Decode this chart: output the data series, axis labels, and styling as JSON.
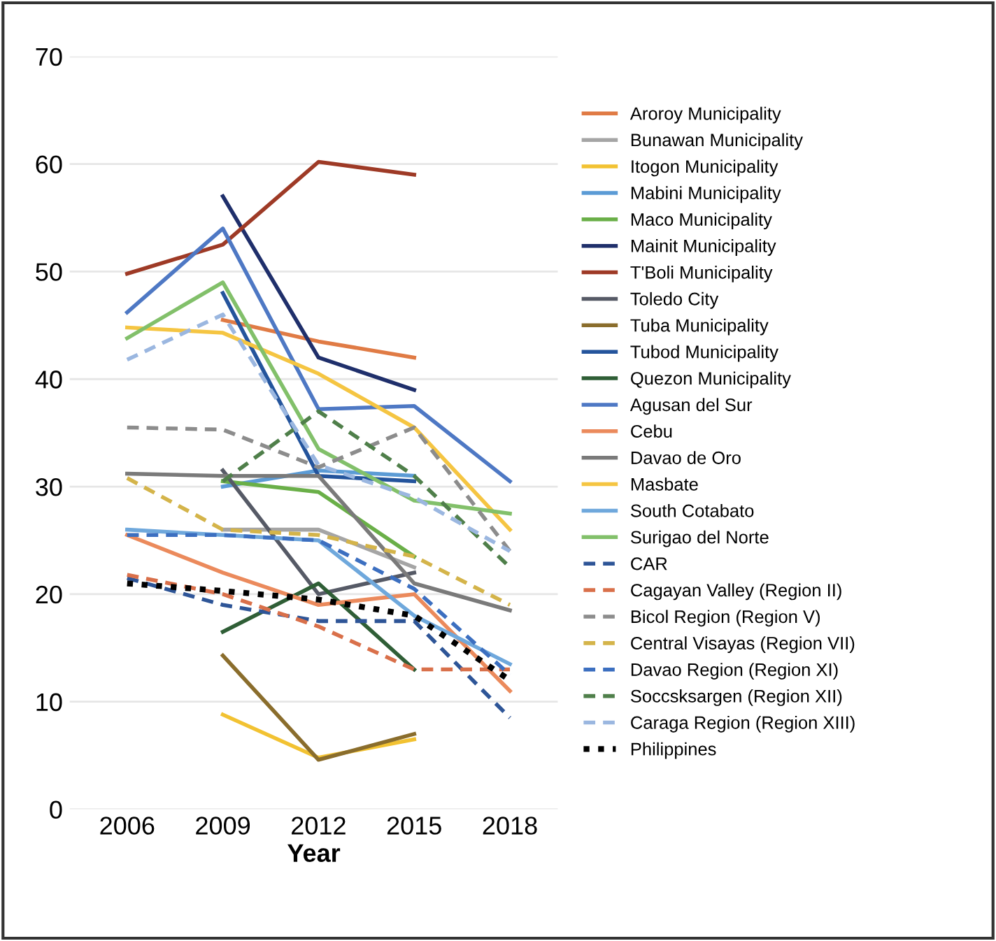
{
  "chart_data": {
    "type": "line",
    "xlabel": "Year",
    "categories": [
      "2006",
      "2009",
      "2012",
      "2015",
      "2018"
    ],
    "ylim": [
      0,
      70
    ],
    "yticks": [
      0,
      10,
      20,
      30,
      40,
      50,
      60,
      70
    ],
    "grid": "y",
    "legend": "right",
    "line_style": "solid",
    "series": [
      {
        "name": "Aroroy Municipality",
        "color": "#e07b45",
        "values": [
          null,
          45.5,
          43.5,
          42,
          null
        ]
      },
      {
        "name": "Bunawan Municipality",
        "color": "#a5a5a5",
        "values": [
          null,
          26,
          26,
          22.5,
          null
        ]
      },
      {
        "name": "Itogon Municipality",
        "color": "#f2c232",
        "values": [
          null,
          8.8,
          4.8,
          6.5,
          null
        ]
      },
      {
        "name": "Mabini Municipality",
        "color": "#5b9bd5",
        "values": [
          null,
          30,
          31.5,
          31,
          null
        ]
      },
      {
        "name": "Maco Municipality",
        "color": "#6aaf48",
        "values": [
          null,
          30.5,
          29.5,
          23.5,
          null
        ]
      },
      {
        "name": "Mainit Municipality",
        "color": "#1f2f6b",
        "values": [
          null,
          57,
          42,
          39,
          null
        ]
      },
      {
        "name": "T'Boli Municipality",
        "color": "#9e3a26",
        "values": [
          49.8,
          52.5,
          60.2,
          59,
          null
        ]
      },
      {
        "name": "Toledo City",
        "color": "#565a66",
        "values": [
          null,
          31.5,
          20,
          22,
          null
        ]
      },
      {
        "name": "Tuba Municipality",
        "color": "#8a6d2c",
        "values": [
          null,
          14.3,
          4.6,
          7,
          null
        ]
      },
      {
        "name": "Tubod Municipality",
        "color": "#24549c",
        "values": [
          null,
          48,
          31,
          30.5,
          null
        ]
      },
      {
        "name": "Quezon Municipality",
        "color": "#2f5e36",
        "values": [
          null,
          16.5,
          21,
          13,
          null
        ]
      },
      {
        "name": "Agusan del Sur",
        "color": "#4e78c4",
        "values": [
          46.2,
          54,
          37.2,
          37.5,
          30.5
        ]
      },
      {
        "name": "Cebu",
        "color": "#eb8a5c",
        "values": [
          25.5,
          22,
          19,
          20,
          11
        ]
      },
      {
        "name": "Davao de Oro",
        "color": "#7a7a7a",
        "values": [
          31.2,
          31,
          31,
          21,
          18.5
        ]
      },
      {
        "name": "Masbate",
        "color": "#f5c542",
        "values": [
          44.8,
          44.3,
          40.5,
          35.5,
          26
        ]
      },
      {
        "name": "South Cotabato",
        "color": "#6fa8dc",
        "values": [
          26,
          25.5,
          25,
          18,
          13.5
        ]
      },
      {
        "name": "Surigao del Norte",
        "color": "#82c06a",
        "values": [
          43.8,
          49,
          33.5,
          28.7,
          27.5
        ]
      },
      {
        "name": "CAR",
        "color": "#2e5597",
        "line_style": "dashed",
        "values": [
          21.5,
          19,
          17.5,
          17.5,
          8.5
        ]
      },
      {
        "name": "Cagayan Valley (Region II)",
        "color": "#d9704a",
        "line_style": "dashed",
        "values": [
          21.8,
          20,
          17,
          13,
          13
        ]
      },
      {
        "name": "Bicol Region (Region V)",
        "color": "#8c8c8c",
        "line_style": "dashed",
        "values": [
          35.5,
          35.3,
          31.8,
          35.5,
          24
        ]
      },
      {
        "name": "Central Visayas (Region VII)",
        "color": "#d4b44a",
        "line_style": "dashed",
        "values": [
          30.8,
          26,
          25.5,
          23.5,
          19
        ]
      },
      {
        "name": "Davao Region (Region XI)",
        "color": "#3c6fc0",
        "line_style": "dashed",
        "values": [
          25.5,
          25.5,
          25,
          20.5,
          12.5
        ]
      },
      {
        "name": "Soccsksargen (Region XII)",
        "color": "#4f7f4a",
        "line_style": "dashed",
        "values": [
          null,
          30.5,
          37,
          31,
          22.5
        ]
      },
      {
        "name": "Caraga Region (Region XIII)",
        "color": "#9bb7e0",
        "line_style": "dashed",
        "values": [
          41.8,
          46,
          32,
          29,
          24
        ]
      },
      {
        "name": "Philippines",
        "color": "#000000",
        "line_style": "dotted",
        "values": [
          21,
          20.3,
          19.5,
          18,
          12
        ]
      }
    ]
  }
}
